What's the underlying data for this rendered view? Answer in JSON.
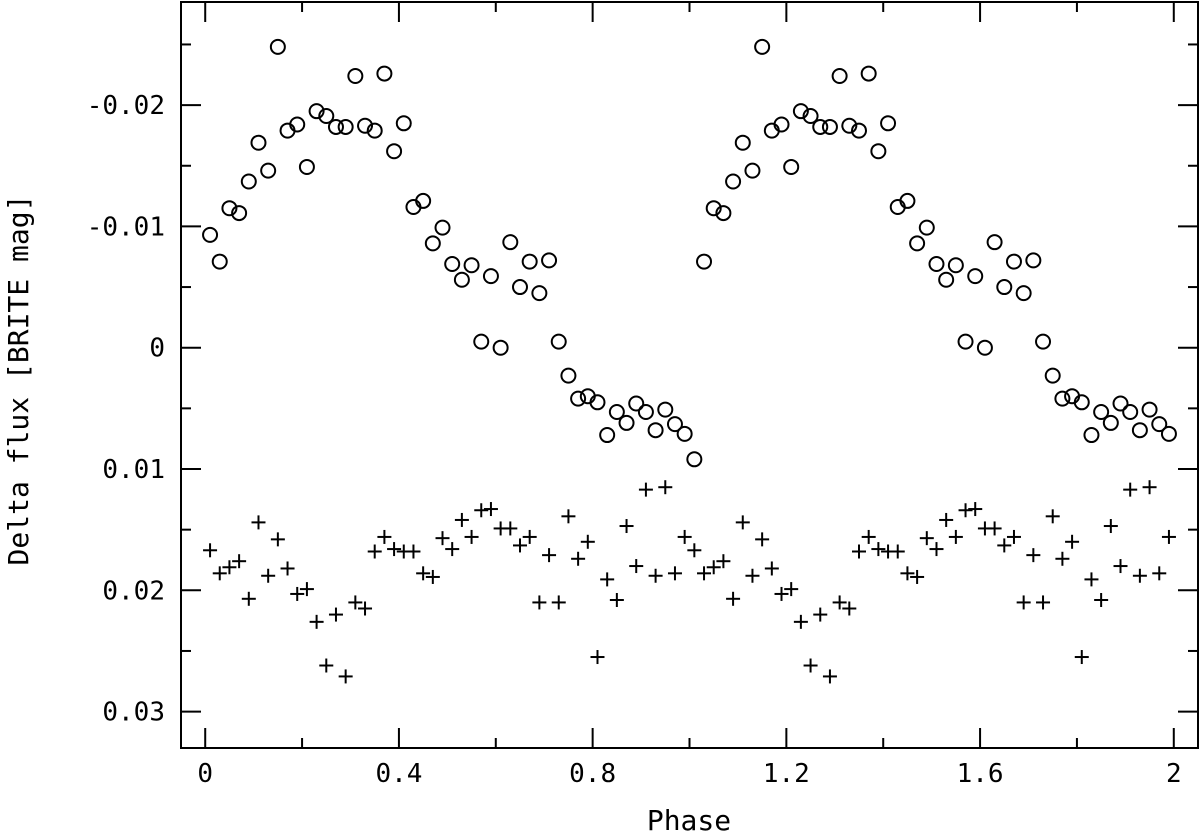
{
  "chart_data": {
    "type": "scatter",
    "xlabel": "Phase",
    "ylabel": "Delta flux [BRITE mag]",
    "xlim": [
      -0.05,
      2.05
    ],
    "ylim": [
      -0.0285,
      0.033
    ],
    "y_inverted": true,
    "grid": false,
    "x_ticks": [
      {
        "value": 0,
        "label": "0"
      },
      {
        "value": 0.4,
        "label": "0.4"
      },
      {
        "value": 0.8,
        "label": "0.8"
      },
      {
        "value": 1.2,
        "label": "1.2"
      },
      {
        "value": 1.6,
        "label": "1.6"
      },
      {
        "value": 2.0,
        "label": "2"
      }
    ],
    "y_ticks": [
      {
        "value": -0.02,
        "label": "-0.02"
      },
      {
        "value": -0.01,
        "label": "-0.01"
      },
      {
        "value": 0,
        "label": "0"
      },
      {
        "value": 0.01,
        "label": "0.01"
      },
      {
        "value": 0.02,
        "label": "0.02"
      },
      {
        "value": 0.03,
        "label": "0.03"
      }
    ],
    "series": [
      {
        "marker": "circle",
        "x": [
          0.01,
          0.03,
          0.05,
          0.07,
          0.09,
          0.11,
          0.13,
          0.15,
          0.17,
          0.19,
          0.21,
          0.23,
          0.25,
          0.27,
          0.29,
          0.31,
          0.33,
          0.35,
          0.37,
          0.39,
          0.41,
          0.43,
          0.45,
          0.47,
          0.49,
          0.51,
          0.53,
          0.55,
          0.57,
          0.59,
          0.61,
          0.63,
          0.65,
          0.67,
          0.69,
          0.71,
          0.73,
          0.75,
          0.77,
          0.79,
          0.81,
          0.83,
          0.85,
          0.87,
          0.89,
          0.91,
          0.93,
          0.95,
          0.97,
          0.99,
          1.01,
          1.03,
          1.05,
          1.07,
          1.09,
          1.11,
          1.13,
          1.15,
          1.17,
          1.19,
          1.21,
          1.23,
          1.25,
          1.27,
          1.29,
          1.31,
          1.33,
          1.35,
          1.37,
          1.39,
          1.41,
          1.43,
          1.45,
          1.47,
          1.49,
          1.51,
          1.53,
          1.55,
          1.57,
          1.59,
          1.61,
          1.63,
          1.65,
          1.67,
          1.69,
          1.71,
          1.73,
          1.75,
          1.77,
          1.79,
          1.81,
          1.83,
          1.85,
          1.87,
          1.89,
          1.91,
          1.93,
          1.95,
          1.97,
          1.99
        ],
        "y": [
          -0.0093,
          -0.0071,
          -0.0115,
          -0.0111,
          -0.0137,
          -0.0169,
          -0.0146,
          -0.0248,
          -0.0179,
          -0.0184,
          -0.0149,
          -0.0195,
          -0.0191,
          -0.0182,
          -0.0182,
          -0.0224,
          -0.0183,
          -0.0179,
          -0.0226,
          -0.0162,
          -0.0185,
          -0.0116,
          -0.0121,
          -0.0086,
          -0.0099,
          -0.0069,
          -0.0056,
          -0.0068,
          -0.0005,
          -0.0059,
          0,
          -0.0087,
          -0.005,
          -0.0071,
          -0.0045,
          -0.0072,
          -0.0005,
          0.0023,
          0.0042,
          0.004,
          0.0045,
          0.0072,
          0.0053,
          0.0062,
          0.0046,
          0.0053,
          0.0068,
          0.0051,
          0.0063,
          0.0071,
          0.0092,
          -0.0071,
          -0.0115,
          -0.0111,
          -0.0137,
          -0.0169,
          -0.0146,
          -0.0248,
          -0.0179,
          -0.0184,
          -0.0149,
          -0.0195,
          -0.0191,
          -0.0182,
          -0.0182,
          -0.0224,
          -0.0183,
          -0.0179,
          -0.0226,
          -0.0162,
          -0.0185,
          -0.0116,
          -0.0121,
          -0.0086,
          -0.0099,
          -0.0069,
          -0.0056,
          -0.0068,
          -0.0005,
          -0.0059,
          0,
          -0.0087,
          -0.005,
          -0.0071,
          -0.0045,
          -0.0072,
          -0.0005,
          0.0023,
          0.0042,
          0.004,
          0.0045,
          0.0072,
          0.0053,
          0.0062,
          0.0046,
          0.0053,
          0.0068,
          0.0051,
          0.0063,
          0.0071
        ]
      },
      {
        "marker": "plus",
        "x": [
          0.01,
          0.03,
          0.05,
          0.07,
          0.09,
          0.11,
          0.13,
          0.15,
          0.17,
          0.19,
          0.21,
          0.23,
          0.25,
          0.27,
          0.29,
          0.31,
          0.33,
          0.35,
          0.37,
          0.39,
          0.41,
          0.43,
          0.45,
          0.47,
          0.49,
          0.51,
          0.53,
          0.55,
          0.57,
          0.59,
          0.61,
          0.63,
          0.65,
          0.67,
          0.69,
          0.71,
          0.73,
          0.75,
          0.77,
          0.79,
          0.81,
          0.83,
          0.85,
          0.87,
          0.89,
          0.91,
          0.93,
          0.95,
          0.97,
          0.99,
          1.01,
          1.03,
          1.05,
          1.07,
          1.09,
          1.11,
          1.13,
          1.15,
          1.17,
          1.19,
          1.21,
          1.23,
          1.25,
          1.27,
          1.29,
          1.31,
          1.33,
          1.35,
          1.37,
          1.39,
          1.41,
          1.43,
          1.45,
          1.47,
          1.49,
          1.51,
          1.53,
          1.55,
          1.57,
          1.59,
          1.61,
          1.63,
          1.65,
          1.67,
          1.69,
          1.71,
          1.73,
          1.75,
          1.77,
          1.79,
          1.81,
          1.83,
          1.85,
          1.87,
          1.89,
          1.91,
          1.93,
          1.95,
          1.97,
          1.99
        ],
        "y": [
          0.0167,
          0.0186,
          0.0181,
          0.0176,
          0.0207,
          0.0144,
          0.0188,
          0.0158,
          0.0182,
          0.0203,
          0.0199,
          0.0226,
          0.0262,
          0.022,
          0.0271,
          0.021,
          0.0215,
          0.0168,
          0.0156,
          0.0166,
          0.0168,
          0.0168,
          0.0186,
          0.0189,
          0.0157,
          0.0166,
          0.0142,
          0.0156,
          0.0134,
          0.0133,
          0.0149,
          0.0149,
          0.0163,
          0.0156,
          0.021,
          0.0171,
          0.021,
          0.0139,
          0.0174,
          0.016,
          0.0255,
          0.0191,
          0.0208,
          0.0147,
          0.018,
          0.0117,
          0.0188,
          0.0115,
          0.0186,
          0.0156,
          0.0167,
          0.0186,
          0.0181,
          0.0176,
          0.0207,
          0.0144,
          0.0188,
          0.0158,
          0.0182,
          0.0203,
          0.0199,
          0.0226,
          0.0262,
          0.022,
          0.0271,
          0.021,
          0.0215,
          0.0168,
          0.0156,
          0.0166,
          0.0168,
          0.0168,
          0.0186,
          0.0189,
          0.0157,
          0.0166,
          0.0142,
          0.0156,
          0.0134,
          0.0133,
          0.0149,
          0.0149,
          0.0163,
          0.0156,
          0.021,
          0.0171,
          0.021,
          0.0139,
          0.0174,
          0.016,
          0.0255,
          0.0191,
          0.0208,
          0.0147,
          0.018,
          0.0117,
          0.0188,
          0.0115,
          0.0186,
          0.0156
        ]
      }
    ]
  }
}
